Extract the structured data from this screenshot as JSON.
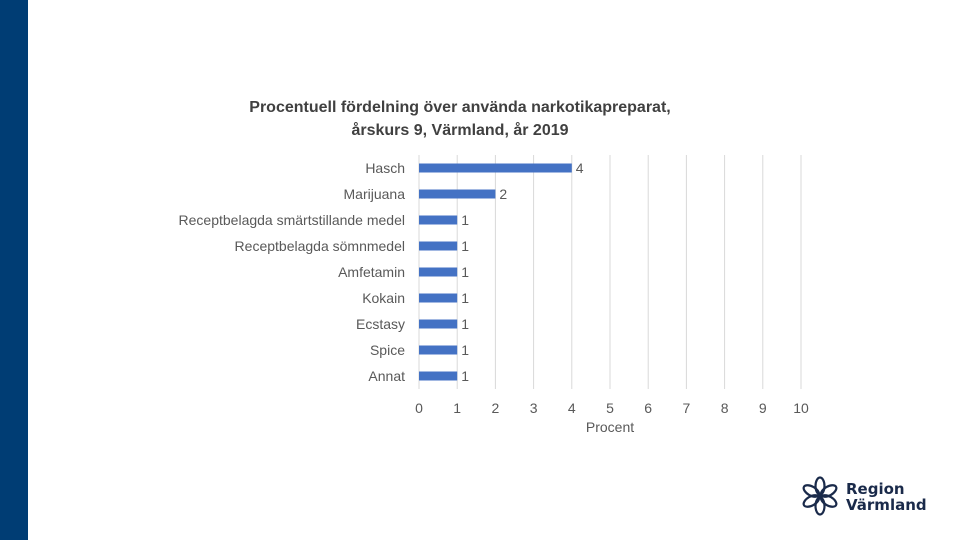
{
  "chart_data": {
    "type": "bar",
    "orientation": "horizontal",
    "title_lines": [
      "Procentuell fördelning över använda narkotikapreparat,",
      "årskurs 9, Värmland, år 2019"
    ],
    "categories": [
      "Hasch",
      "Marijuana",
      "Receptbelagda smärtstillande medel",
      "Receptbelagda sömnmedel",
      "Amfetamin",
      "Kokain",
      "Ecstasy",
      "Spice",
      "Annat"
    ],
    "values": [
      4,
      2,
      1,
      1,
      1,
      1,
      1,
      1,
      1
    ],
    "value_labels": [
      "4",
      "2",
      "1",
      "1",
      "1",
      "1",
      "1",
      "1",
      "1"
    ],
    "xlabel": "Procent",
    "ylabel": "",
    "xlim": [
      0,
      10
    ],
    "x_ticks": [
      0,
      1,
      2,
      3,
      4,
      5,
      6,
      7,
      8,
      9,
      10
    ],
    "grid": true,
    "legend": "none",
    "bar_color": "#4472c4"
  },
  "branding": {
    "logo_line1": "Region",
    "logo_line2": "Värmland",
    "band_color": "#003d74"
  }
}
